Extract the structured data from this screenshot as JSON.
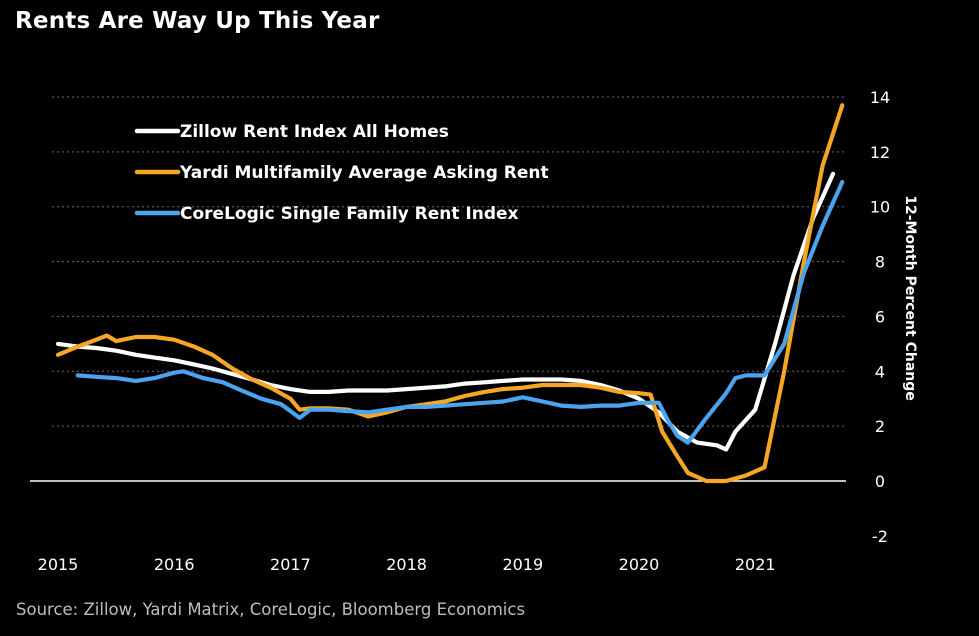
{
  "title": "Rents Are Way Up This Year",
  "source": "Source: Zillow, Yardi Matrix, CoreLogic, Bloomberg Economics",
  "chart_data": {
    "type": "line",
    "title": "Rents Are Way Up This Year",
    "xlabel": "",
    "ylabel": "12-Month Percent Change",
    "xlim": [
      2015.0,
      2021.9
    ],
    "ylim": [
      -2,
      14
    ],
    "x_ticks": [
      "2015",
      "2016",
      "2017",
      "2018",
      "2019",
      "2020",
      "2021"
    ],
    "y_ticks": [
      "-2",
      "0",
      "2",
      "4",
      "6",
      "8",
      "10",
      "12",
      "14"
    ],
    "y_axis_side": "right",
    "grid": "horizontal dotted",
    "zero_line": true,
    "legend_position": "top-left",
    "series": [
      {
        "name": "Zillow Rent Index All Homes",
        "color": "#ffffff",
        "points": [
          [
            2015.0,
            5.0
          ],
          [
            2015.17,
            4.9
          ],
          [
            2015.33,
            4.85
          ],
          [
            2015.5,
            4.75
          ],
          [
            2015.67,
            4.6
          ],
          [
            2015.83,
            4.5
          ],
          [
            2016.0,
            4.4
          ],
          [
            2016.17,
            4.25
          ],
          [
            2016.33,
            4.1
          ],
          [
            2016.5,
            3.9
          ],
          [
            2016.67,
            3.7
          ],
          [
            2016.83,
            3.5
          ],
          [
            2017.0,
            3.35
          ],
          [
            2017.17,
            3.25
          ],
          [
            2017.33,
            3.25
          ],
          [
            2017.5,
            3.3
          ],
          [
            2017.67,
            3.3
          ],
          [
            2017.83,
            3.3
          ],
          [
            2018.0,
            3.35
          ],
          [
            2018.17,
            3.4
          ],
          [
            2018.33,
            3.45
          ],
          [
            2018.5,
            3.55
          ],
          [
            2018.67,
            3.6
          ],
          [
            2018.83,
            3.65
          ],
          [
            2019.0,
            3.7
          ],
          [
            2019.17,
            3.7
          ],
          [
            2019.33,
            3.7
          ],
          [
            2019.5,
            3.65
          ],
          [
            2019.67,
            3.5
          ],
          [
            2019.83,
            3.3
          ],
          [
            2020.0,
            3.0
          ],
          [
            2020.17,
            2.5
          ],
          [
            2020.33,
            1.8
          ],
          [
            2020.5,
            1.4
          ],
          [
            2020.67,
            1.3
          ],
          [
            2020.75,
            1.15
          ],
          [
            2020.83,
            1.8
          ],
          [
            2021.0,
            2.6
          ],
          [
            2021.17,
            5.0
          ],
          [
            2021.33,
            7.5
          ],
          [
            2021.5,
            9.6
          ],
          [
            2021.67,
            11.2
          ]
        ]
      },
      {
        "name": "Yardi Multifamily Average Asking Rent",
        "color": "#f5a623",
        "points": [
          [
            2015.0,
            4.6
          ],
          [
            2015.17,
            4.9
          ],
          [
            2015.33,
            5.15
          ],
          [
            2015.42,
            5.3
          ],
          [
            2015.5,
            5.1
          ],
          [
            2015.67,
            5.25
          ],
          [
            2015.83,
            5.25
          ],
          [
            2016.0,
            5.15
          ],
          [
            2016.17,
            4.9
          ],
          [
            2016.33,
            4.6
          ],
          [
            2016.5,
            4.1
          ],
          [
            2016.67,
            3.7
          ],
          [
            2016.83,
            3.4
          ],
          [
            2017.0,
            3.0
          ],
          [
            2017.08,
            2.6
          ],
          [
            2017.17,
            2.65
          ],
          [
            2017.33,
            2.65
          ],
          [
            2017.5,
            2.6
          ],
          [
            2017.67,
            2.35
          ],
          [
            2017.83,
            2.5
          ],
          [
            2018.0,
            2.7
          ],
          [
            2018.17,
            2.8
          ],
          [
            2018.33,
            2.9
          ],
          [
            2018.5,
            3.1
          ],
          [
            2018.67,
            3.25
          ],
          [
            2018.83,
            3.35
          ],
          [
            2019.0,
            3.4
          ],
          [
            2019.17,
            3.5
          ],
          [
            2019.33,
            3.5
          ],
          [
            2019.5,
            3.5
          ],
          [
            2019.67,
            3.4
          ],
          [
            2019.83,
            3.25
          ],
          [
            2020.0,
            3.2
          ],
          [
            2020.1,
            3.15
          ],
          [
            2020.2,
            1.8
          ],
          [
            2020.33,
            0.9
          ],
          [
            2020.42,
            0.3
          ],
          [
            2020.58,
            0.0
          ],
          [
            2020.75,
            0.0
          ],
          [
            2020.92,
            0.2
          ],
          [
            2021.08,
            0.5
          ],
          [
            2021.25,
            4.0
          ],
          [
            2021.42,
            8.0
          ],
          [
            2021.58,
            11.5
          ],
          [
            2021.75,
            13.7
          ]
        ]
      },
      {
        "name": "CoreLogic Single Family Rent Index",
        "color": "#4aa3ec",
        "points": [
          [
            2015.17,
            3.85
          ],
          [
            2015.33,
            3.8
          ],
          [
            2015.5,
            3.75
          ],
          [
            2015.67,
            3.65
          ],
          [
            2015.83,
            3.75
          ],
          [
            2016.0,
            3.95
          ],
          [
            2016.08,
            4.0
          ],
          [
            2016.25,
            3.75
          ],
          [
            2016.42,
            3.6
          ],
          [
            2016.58,
            3.3
          ],
          [
            2016.75,
            3.0
          ],
          [
            2016.92,
            2.8
          ],
          [
            2017.0,
            2.55
          ],
          [
            2017.08,
            2.3
          ],
          [
            2017.17,
            2.6
          ],
          [
            2017.33,
            2.6
          ],
          [
            2017.5,
            2.55
          ],
          [
            2017.67,
            2.5
          ],
          [
            2017.83,
            2.6
          ],
          [
            2018.0,
            2.7
          ],
          [
            2018.17,
            2.7
          ],
          [
            2018.33,
            2.75
          ],
          [
            2018.5,
            2.8
          ],
          [
            2018.67,
            2.85
          ],
          [
            2018.83,
            2.9
          ],
          [
            2019.0,
            3.05
          ],
          [
            2019.17,
            2.9
          ],
          [
            2019.33,
            2.75
          ],
          [
            2019.5,
            2.7
          ],
          [
            2019.67,
            2.75
          ],
          [
            2019.83,
            2.75
          ],
          [
            2020.0,
            2.85
          ],
          [
            2020.17,
            2.85
          ],
          [
            2020.25,
            2.2
          ],
          [
            2020.33,
            1.65
          ],
          [
            2020.42,
            1.4
          ],
          [
            2020.58,
            2.3
          ],
          [
            2020.75,
            3.2
          ],
          [
            2020.83,
            3.75
          ],
          [
            2020.92,
            3.85
          ],
          [
            2021.08,
            3.85
          ],
          [
            2021.25,
            5.0
          ],
          [
            2021.42,
            7.6
          ],
          [
            2021.58,
            9.3
          ],
          [
            2021.75,
            10.9
          ]
        ]
      }
    ]
  }
}
